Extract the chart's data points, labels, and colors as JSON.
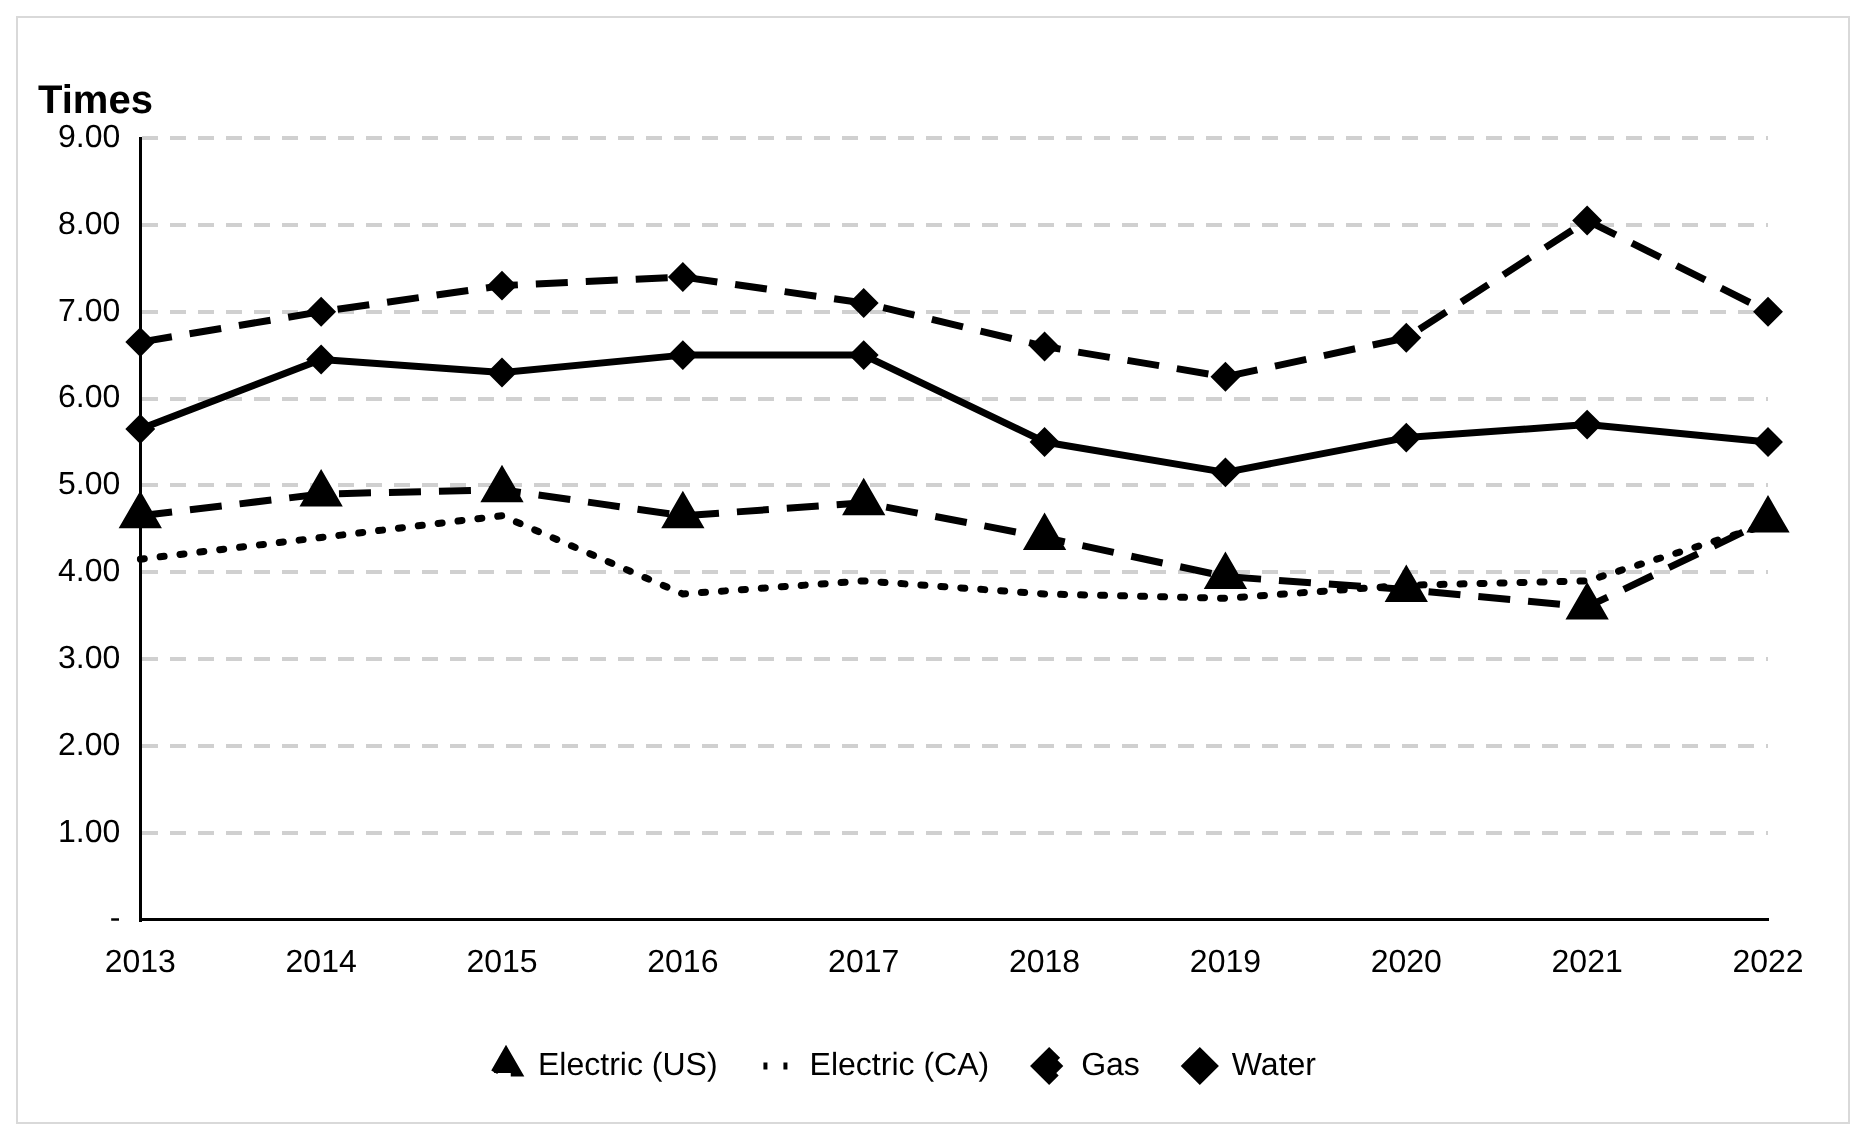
{
  "chart_data": {
    "type": "line",
    "ylabel": "Times",
    "categories": [
      "2013",
      "2014",
      "2015",
      "2016",
      "2017",
      "2018",
      "2019",
      "2020",
      "2021",
      "2022"
    ],
    "ylim": [
      0,
      9
    ],
    "yticks": [
      {
        "value": 0,
        "label": "-"
      },
      {
        "value": 1,
        "label": "1.00"
      },
      {
        "value": 2,
        "label": "2.00"
      },
      {
        "value": 3,
        "label": "3.00"
      },
      {
        "value": 4,
        "label": "4.00"
      },
      {
        "value": 5,
        "label": "5.00"
      },
      {
        "value": 6,
        "label": "6.00"
      },
      {
        "value": 7,
        "label": "7.00"
      },
      {
        "value": 8,
        "label": "8.00"
      },
      {
        "value": 9,
        "label": "9.00"
      }
    ],
    "grid": "y",
    "legend": "bottom",
    "series": [
      {
        "name": "Electric (US)",
        "color": "#000000",
        "marker": "triangle",
        "line_style": "dashed",
        "values": [
          4.65,
          4.9,
          4.95,
          4.65,
          4.8,
          4.4,
          3.95,
          3.8,
          3.6,
          4.6
        ]
      },
      {
        "name": "Electric (CA)",
        "color": "#000000",
        "marker": "none",
        "line_style": "dotted",
        "values": [
          4.15,
          4.4,
          4.65,
          3.75,
          3.9,
          3.75,
          3.7,
          3.85,
          3.9,
          4.55
        ]
      },
      {
        "name": "Gas",
        "color": "#000000",
        "marker": "diamond",
        "line_style": "dashed",
        "values": [
          6.65,
          7.0,
          7.3,
          7.4,
          7.1,
          6.6,
          6.25,
          6.7,
          8.05,
          7.0
        ]
      },
      {
        "name": "Water",
        "color": "#000000",
        "marker": "diamond",
        "line_style": "solid",
        "values": [
          5.65,
          6.45,
          6.3,
          6.5,
          6.5,
          5.5,
          5.15,
          5.55,
          5.7,
          5.5
        ]
      }
    ]
  }
}
